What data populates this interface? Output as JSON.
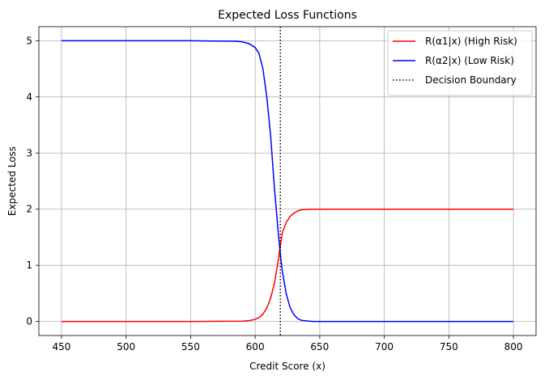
{
  "chart_data": {
    "type": "line",
    "title": "Expected Loss Functions",
    "xlabel": "Credit Score (x)",
    "ylabel": "Expected Loss",
    "xlim": [
      432.5,
      817.5
    ],
    "ylim": [
      -0.25,
      5.25
    ],
    "xticks": [
      450,
      500,
      550,
      600,
      650,
      700,
      750,
      800
    ],
    "yticks": [
      0,
      1,
      2,
      3,
      4,
      5
    ],
    "grid": true,
    "legend_position": "top-right",
    "series": [
      {
        "name": "R(α1|x) (High Risk)",
        "color": "#ff0000",
        "x": [
          450,
          500,
          550,
          590,
          595,
          600,
          603,
          606,
          609,
          612,
          615,
          618,
          619.5,
          621,
          624,
          627,
          630,
          633,
          636,
          640,
          645,
          650,
          700,
          750,
          800
        ],
        "y": [
          0.0,
          0.0,
          0.0,
          0.005,
          0.014,
          0.037,
          0.07,
          0.13,
          0.24,
          0.42,
          0.69,
          1.11,
          1.35,
          1.58,
          1.76,
          1.87,
          1.93,
          1.97,
          1.99,
          1.995,
          2.0,
          2.0,
          2.0,
          2.0,
          2.0
        ]
      },
      {
        "name": "R(α2|x) (Low Risk)",
        "color": "#0000ff",
        "x": [
          450,
          500,
          550,
          585,
          590,
          595,
          600,
          603,
          606,
          609,
          612,
          615,
          618,
          619.5,
          621,
          624,
          627,
          630,
          633,
          636,
          640,
          645,
          650,
          700,
          750,
          800
        ],
        "y": [
          5.0,
          5.0,
          5.0,
          4.99,
          4.98,
          4.95,
          4.88,
          4.77,
          4.5,
          4.0,
          3.3,
          2.35,
          1.55,
          1.2,
          0.9,
          0.5,
          0.25,
          0.12,
          0.05,
          0.02,
          0.01,
          0.0,
          0.0,
          0.0,
          0.0,
          0.0
        ]
      }
    ],
    "reference_lines": [
      {
        "name": "Decision Boundary",
        "orientation": "vertical",
        "x": 619.5,
        "color": "#000000",
        "style": "dotted"
      }
    ]
  }
}
